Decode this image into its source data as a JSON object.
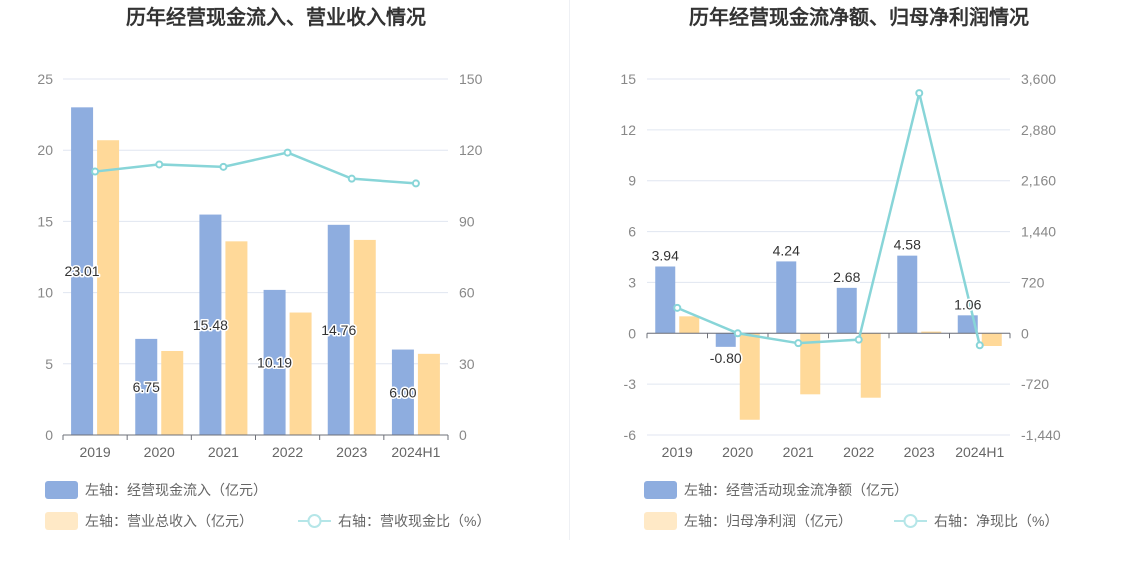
{
  "chart_data": [
    {
      "type": "bar",
      "title": "历年经营现金流入、营业收入情况",
      "categories": [
        "2019",
        "2020",
        "2021",
        "2022",
        "2023",
        "2024H1"
      ],
      "left_axis": {
        "ylim": [
          0,
          25
        ],
        "ticks": [
          0,
          5,
          10,
          15,
          20,
          25
        ]
      },
      "right_axis": {
        "ylim": [
          0,
          150
        ],
        "ticks": [
          0,
          30,
          60,
          90,
          120,
          150
        ]
      },
      "series": [
        {
          "name": "左轴：经营现金流入（亿元）",
          "kind": "bar",
          "axis": "left",
          "color": "#8eaddf",
          "values": [
            23.01,
            6.75,
            15.48,
            10.19,
            14.76,
            6.0
          ],
          "labels": [
            "23.01",
            "6.75",
            "15.48",
            "10.19",
            "14.76",
            "6.00"
          ]
        },
        {
          "name": "左轴：营业总收入（亿元）",
          "kind": "bar",
          "axis": "left",
          "color": "#ffd999",
          "values": [
            20.7,
            5.9,
            13.6,
            8.6,
            13.7,
            5.7
          ]
        },
        {
          "name": "右轴：营收现金比（%）",
          "kind": "line",
          "axis": "right",
          "color": "#88d5d8",
          "values": [
            111,
            114,
            113,
            119,
            108,
            106
          ]
        }
      ],
      "grid": true
    },
    {
      "type": "bar",
      "title": "历年经营现金流净额、归母净利润情况",
      "categories": [
        "2019",
        "2020",
        "2021",
        "2022",
        "2023",
        "2024H1"
      ],
      "left_axis": {
        "ylim": [
          -6,
          15
        ],
        "ticks": [
          -6,
          -3,
          0,
          3,
          6,
          9,
          12,
          15
        ],
        "tick_labels": [
          "-6",
          "-3",
          "0",
          "3",
          "6",
          "9",
          "12",
          "15"
        ]
      },
      "right_axis": {
        "ylim": [
          -1440,
          3600
        ],
        "ticks": [
          -1440,
          -720,
          0,
          720,
          1440,
          2160,
          2880,
          3600
        ],
        "tick_labels": [
          "-1,440",
          "-720",
          "0",
          "720",
          "1,440",
          "2,160",
          "2,880",
          "3,600"
        ]
      },
      "series": [
        {
          "name": "左轴：经营活动现金流净额（亿元）",
          "kind": "bar",
          "axis": "left",
          "color": "#8eaddf",
          "values": [
            3.94,
            -0.8,
            4.24,
            2.68,
            4.58,
            1.06
          ],
          "labels": [
            "3.94",
            "-0.80",
            "4.24",
            "2.68",
            "4.58",
            "1.06"
          ]
        },
        {
          "name": "左轴：归母净利润（亿元）",
          "kind": "bar",
          "axis": "left",
          "color": "#ffd999",
          "values": [
            1.0,
            -5.1,
            -3.6,
            -3.8,
            0.1,
            -0.75
          ]
        },
        {
          "name": "右轴：净现比（%）",
          "kind": "line",
          "axis": "right",
          "color": "#88d5d8",
          "values": [
            360,
            0,
            -140,
            -90,
            3400,
            -170
          ]
        }
      ],
      "grid": true
    }
  ]
}
